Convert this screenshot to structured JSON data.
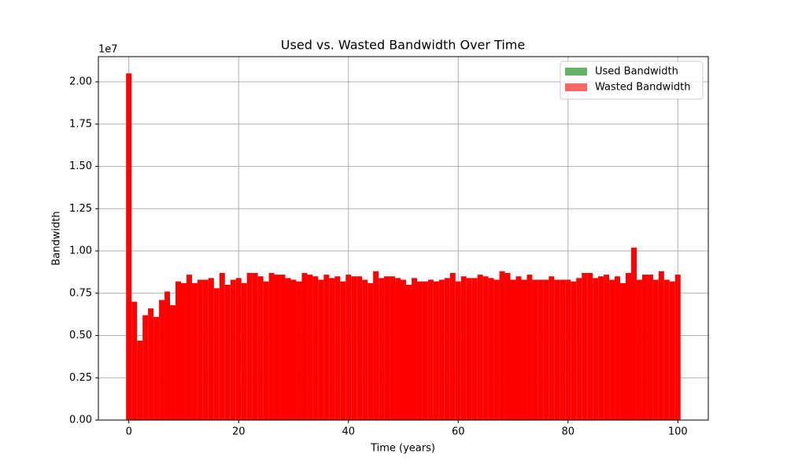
{
  "chart_data": {
    "type": "bar",
    "title": "Used vs. Wasted Bandwidth Over Time",
    "x_label": "Time (years)",
    "y_label": "Bandwidth",
    "y_offset_label": "1e7",
    "x": [
      0,
      1,
      2,
      3,
      4,
      5,
      6,
      7,
      8,
      9,
      10,
      11,
      12,
      13,
      14,
      15,
      16,
      17,
      18,
      19,
      20,
      21,
      22,
      23,
      24,
      25,
      26,
      27,
      28,
      29,
      30,
      31,
      32,
      33,
      34,
      35,
      36,
      37,
      38,
      39,
      40,
      41,
      42,
      43,
      44,
      45,
      46,
      47,
      48,
      49,
      50,
      51,
      52,
      53,
      54,
      55,
      56,
      57,
      58,
      59,
      60,
      61,
      62,
      63,
      64,
      65,
      66,
      67,
      68,
      69,
      70,
      71,
      72,
      73,
      74,
      75,
      76,
      77,
      78,
      79,
      80,
      81,
      82,
      83,
      84,
      85,
      86,
      87,
      88,
      89,
      90,
      91,
      92,
      93,
      94,
      95,
      96,
      97,
      98,
      99,
      100
    ],
    "series": [
      {
        "name": "Used Bandwidth",
        "color": "#008000",
        "values": [
          null,
          null,
          null,
          null,
          null,
          null,
          null,
          null,
          null,
          null,
          null,
          null,
          null,
          null,
          null,
          null,
          null,
          null,
          null,
          null,
          null,
          null,
          null,
          null,
          null,
          null,
          null,
          null,
          null,
          null,
          null,
          null,
          null,
          null,
          null,
          null,
          null,
          null,
          null,
          null,
          null,
          null,
          null,
          null,
          null,
          null,
          null,
          null,
          null,
          null,
          null,
          null,
          null,
          null,
          null,
          null,
          null,
          null,
          null,
          null,
          null,
          null,
          null,
          null,
          null,
          null,
          null,
          null,
          null,
          null,
          null,
          null,
          null,
          null,
          null,
          null,
          null,
          null,
          null,
          null,
          null,
          null,
          null,
          null,
          null,
          null,
          null,
          null,
          null,
          null,
          null,
          null,
          null,
          null,
          null,
          null,
          null,
          null,
          null,
          null,
          null
        ]
      },
      {
        "name": "Wasted Bandwidth",
        "color": "#ff0000",
        "values": [
          20500000,
          7000000,
          4700000,
          6200000,
          6600000,
          6100000,
          7100000,
          7600000,
          6800000,
          8200000,
          8100000,
          8600000,
          8100000,
          8300000,
          8300000,
          8400000,
          7800000,
          8700000,
          8000000,
          8300000,
          8400000,
          8100000,
          8700000,
          8700000,
          8500000,
          8200000,
          8700000,
          8600000,
          8600000,
          8400000,
          8300000,
          8200000,
          8700000,
          8600000,
          8500000,
          8300000,
          8600000,
          8400000,
          8500000,
          8200000,
          8600000,
          8500000,
          8500000,
          8300000,
          8100000,
          8800000,
          8400000,
          8500000,
          8500000,
          8400000,
          8300000,
          8000000,
          8400000,
          8200000,
          8200000,
          8300000,
          8200000,
          8300000,
          8400000,
          8700000,
          8200000,
          8500000,
          8400000,
          8400000,
          8600000,
          8500000,
          8400000,
          8300000,
          8800000,
          8700000,
          8300000,
          8500000,
          8300000,
          8600000,
          8300000,
          8300000,
          8300000,
          8500000,
          8300000,
          8300000,
          8300000,
          8200000,
          8400000,
          8700000,
          8700000,
          8400000,
          8500000,
          8600000,
          8300000,
          8500000,
          8100000,
          8700000,
          10200000,
          8300000,
          8600000,
          8600000,
          8300000,
          8800000,
          8300000,
          8200000,
          8600000
        ]
      }
    ],
    "xlim": [
      -5.55,
      105.55
    ],
    "ylim": [
      0,
      21490000
    ],
    "xticks": [
      0,
      20,
      40,
      60,
      80,
      100
    ],
    "yticks": [
      {
        "value": 0,
        "label": "0.00"
      },
      {
        "value": 2500000,
        "label": "0.25"
      },
      {
        "value": 5000000,
        "label": "0.50"
      },
      {
        "value": 7500000,
        "label": "0.75"
      },
      {
        "value": 10000000,
        "label": "1.00"
      },
      {
        "value": 12500000,
        "label": "1.25"
      },
      {
        "value": 15000000,
        "label": "1.50"
      },
      {
        "value": 17500000,
        "label": "1.75"
      },
      {
        "value": 20000000,
        "label": "2.00"
      }
    ],
    "grid": true,
    "legend": "upper right"
  }
}
